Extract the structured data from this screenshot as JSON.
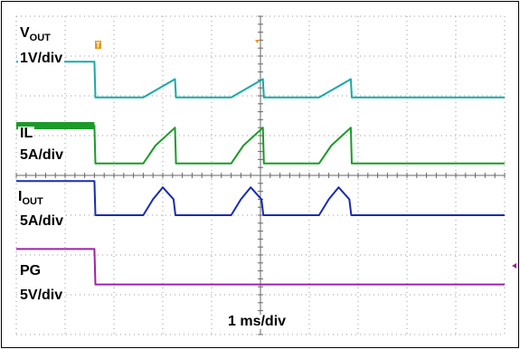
{
  "chart_data": {
    "type": "line",
    "title": "",
    "xlabel": "1 ms/div",
    "ylabel": "",
    "grid": true,
    "divisions": {
      "x": 10,
      "y": 8
    },
    "x_divisions_range": [
      0,
      10
    ],
    "y_divisions_range": [
      -4,
      4
    ],
    "series": [
      {
        "name_main": "V",
        "name_sub": "OUT",
        "scale": "1V/div",
        "color": "#1aa9a6",
        "x": [
          0,
          1.6,
          1.62,
          2.6,
          3.25,
          3.27,
          3.3,
          4.4,
          5.05,
          5.07,
          5.1,
          6.2,
          6.85,
          6.87,
          6.9,
          10
        ],
        "y": [
          2.86,
          2.86,
          1.96,
          1.96,
          2.42,
          1.96,
          1.96,
          1.96,
          2.42,
          1.96,
          1.96,
          1.96,
          2.42,
          1.96,
          1.96,
          1.96
        ]
      },
      {
        "name_main": "IL",
        "name_sub": "",
        "scale": "5A/div",
        "color": "#1c9a2a",
        "x": [
          0,
          1.6,
          1.62,
          2.6,
          2.85,
          3.25,
          3.27,
          3.3,
          4.4,
          4.65,
          5.05,
          5.07,
          5.1,
          6.2,
          6.45,
          6.85,
          6.87,
          6.9,
          10
        ],
        "y": [
          1.25,
          1.25,
          0.3,
          0.3,
          0.75,
          1.2,
          0.3,
          0.3,
          0.3,
          0.75,
          1.2,
          0.3,
          0.3,
          0.3,
          0.75,
          1.2,
          0.3,
          0.3,
          0.3
        ]
      },
      {
        "name_main": "I",
        "name_sub": "OUT",
        "scale": "5A/div",
        "color": "#1a2bb0",
        "x": [
          0,
          1.6,
          1.62,
          2.6,
          2.8,
          3.0,
          3.22,
          3.26,
          3.3,
          4.4,
          4.6,
          4.8,
          5.02,
          5.06,
          5.1,
          6.2,
          6.4,
          6.6,
          6.82,
          6.86,
          6.9,
          10
        ],
        "y": [
          -0.14,
          -0.14,
          -1.0,
          -1.0,
          -0.6,
          -0.3,
          -0.6,
          -1.0,
          -1.0,
          -1.0,
          -0.6,
          -0.3,
          -0.6,
          -1.0,
          -1.0,
          -1.0,
          -0.6,
          -0.3,
          -0.6,
          -1.0,
          -1.0,
          -1.0
        ]
      },
      {
        "name_main": "PG",
        "name_sub": "",
        "scale": "5V/div",
        "color": "#a020a8",
        "x": [
          0,
          1.6,
          1.62,
          10
        ],
        "y": [
          -1.85,
          -1.85,
          -2.74,
          -2.74
        ]
      }
    ]
  }
}
